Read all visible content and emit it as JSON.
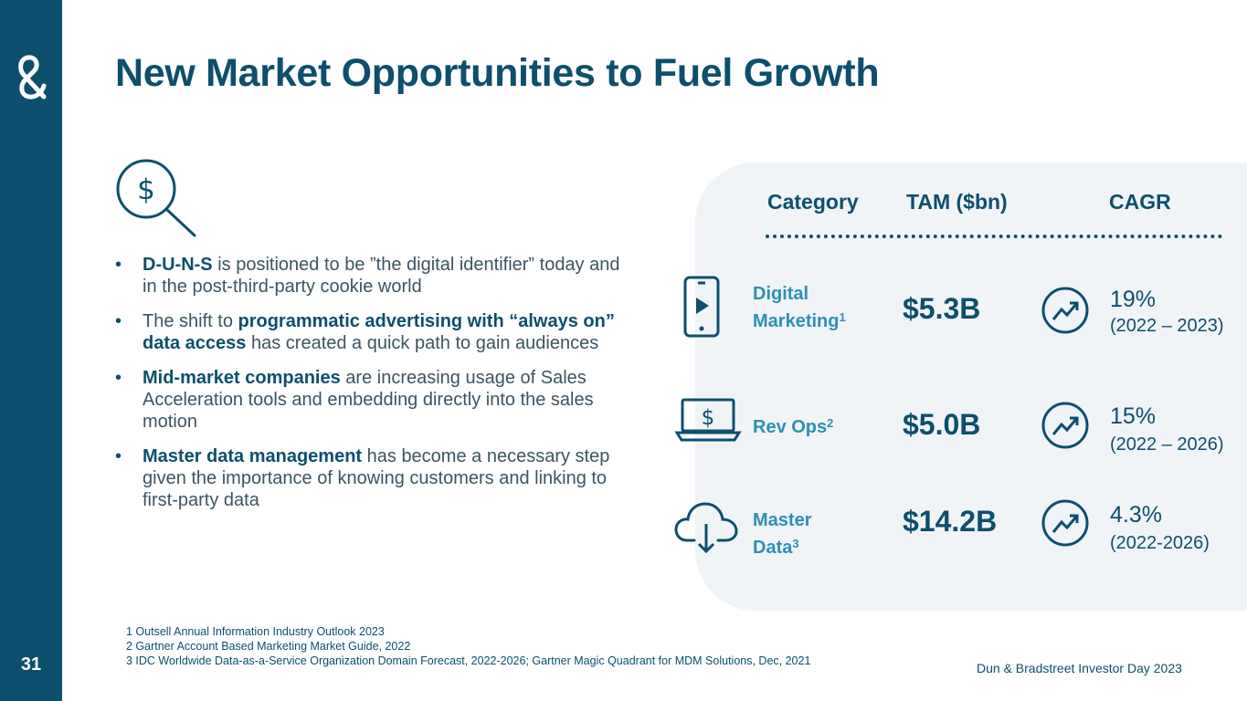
{
  "page_number": "31",
  "title": "New Market Opportunities to Fuel Growth",
  "bullets": [
    {
      "bold": "D-U-N-S",
      "text": " is positioned to be ”the digital identifier” today and in the post-third-party cookie world"
    },
    {
      "before": "The shift to ",
      "bold": "programmatic advertising with “always on” data access",
      "text": " has created a quick path to gain audiences"
    },
    {
      "bold": "Mid-market companies",
      "text": " are increasing usage of Sales Acceleration tools and embedding directly into the sales motion"
    },
    {
      "bold": "Master data management",
      "text": " has become a necessary step given the importance of knowing customers and linking to first-party data"
    }
  ],
  "table": {
    "headers": {
      "category": "Category",
      "tam": "TAM ($bn)",
      "cagr": "CAGR"
    },
    "rows": [
      {
        "label_line1": "Digital",
        "label_line2": "Marketing",
        "sup": "1",
        "tam": "$5.3B",
        "cagr": "19%",
        "years": "(2022 – 2023)"
      },
      {
        "label_line1": "Rev Ops",
        "sup": "2",
        "tam": "$5.0B",
        "cagr": "15%",
        "years": "(2022 – 2026)"
      },
      {
        "label_line1": "Master",
        "label_line2": "Data",
        "sup": "3",
        "tam": "$14.2B",
        "cagr": "4.3%",
        "years": "(2022-2026)"
      }
    ]
  },
  "footnotes": [
    "1 Outsell Annual Information Industry Outlook 2023",
    "2 Gartner Account Based Marketing Market Guide, 2022",
    "3 IDC Worldwide Data-as-a-Service Organization Domain Forecast, 2022-2026; Gartner Magic Quadrant for MDM  Solutions, Dec, 2021"
  ],
  "footer_brand": "Dun & Bradstreet Investor Day 2023",
  "colors": {
    "navy": "#0d4f6c",
    "accent": "#2e8fb5",
    "panel": "#f1f4f7"
  }
}
